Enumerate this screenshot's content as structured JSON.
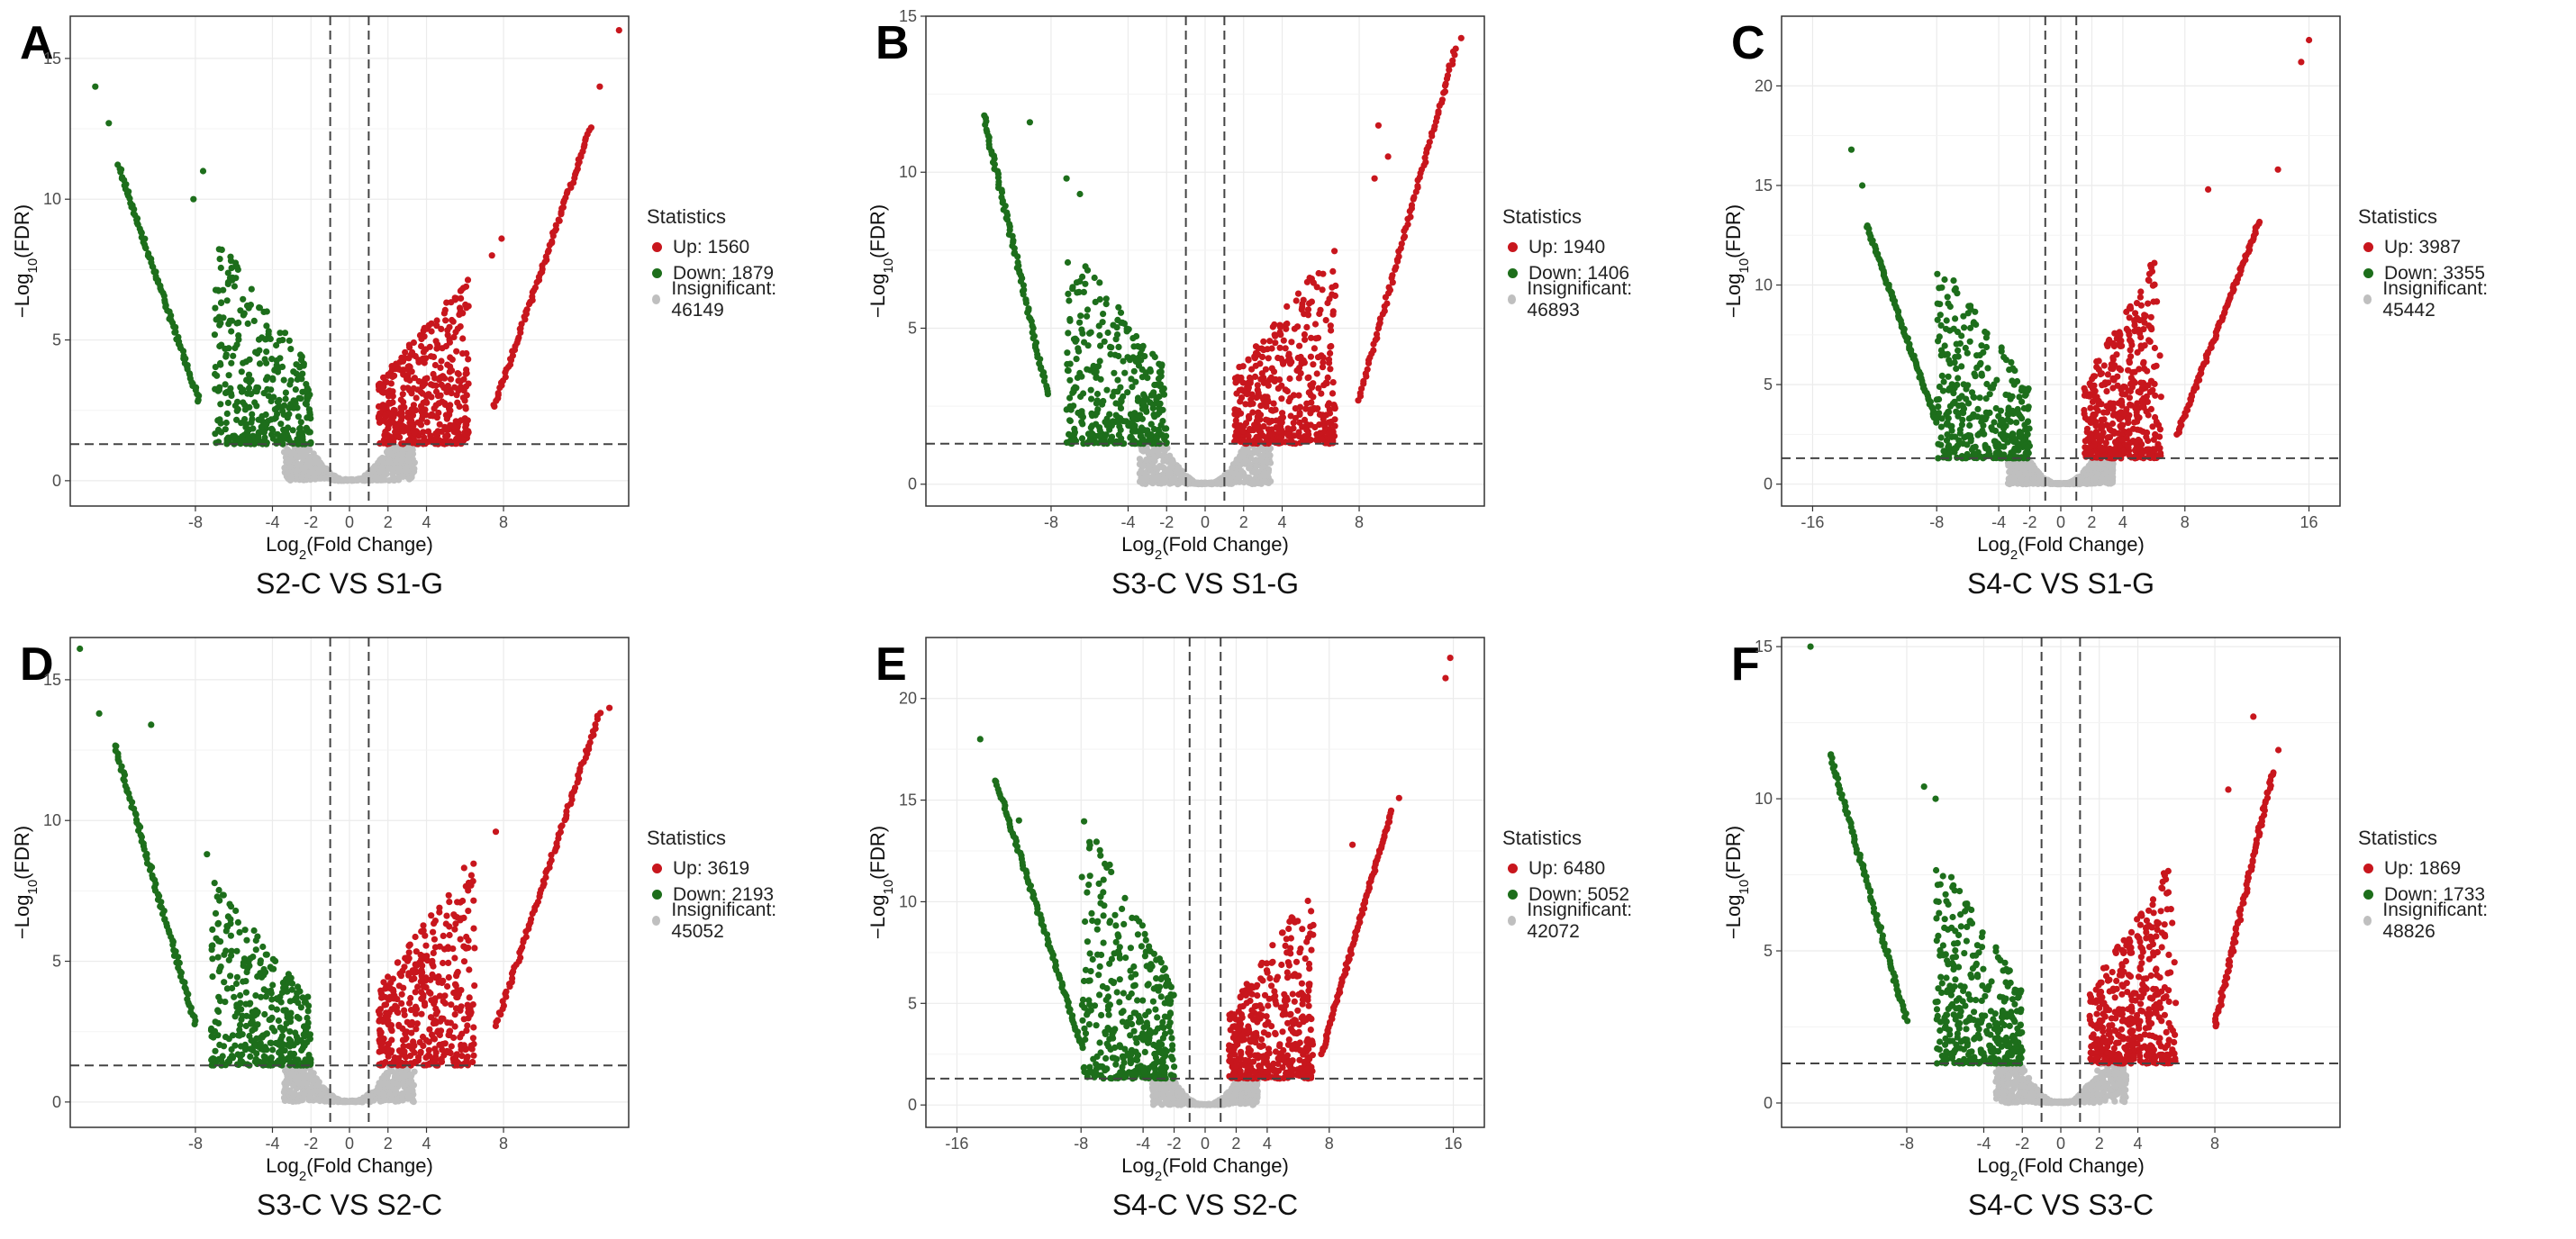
{
  "colors": {
    "up": "#c8161d",
    "down": "#1d6e1b",
    "insignificant": "#bfbfbf",
    "grid": "#ebebeb",
    "border": "#333333"
  },
  "legend_title": "Statistics",
  "legend_labels": {
    "up": "Up",
    "down": "Down",
    "insignificant": "Insignificant"
  },
  "axis_labels": {
    "x_prefix": "Log",
    "x_sub": "2",
    "x_suffix": "(Fold Change)",
    "y_prefix": "−Log",
    "y_sub": "10",
    "y_suffix": "(FDR)"
  },
  "chart_data": [
    {
      "type": "scatter",
      "id": "A",
      "title": "S2-C VS S1-G",
      "stats": {
        "up": "Up: 1560",
        "down": "Down: 1879",
        "insignificant": "Insignificant: 46149"
      },
      "xlim": [
        -14.5,
        14.5
      ],
      "ylim": [
        -0.9,
        16.5
      ],
      "xticks": [
        -8,
        -4,
        -2,
        0,
        2,
        4,
        8
      ],
      "yticks": [
        0,
        5,
        10,
        15
      ],
      "thresholds": {
        "fc_left": -1,
        "fc_right": 1,
        "fdr": 1.3
      },
      "extremes": {
        "down": [
          [
            -13.2,
            14.0
          ],
          [
            -12.5,
            12.7
          ],
          [
            -7.6,
            11.0
          ],
          [
            -8.1,
            10.0
          ]
        ],
        "up": [
          [
            14.0,
            16.0
          ],
          [
            13.0,
            14.0
          ],
          [
            7.9,
            8.6
          ],
          [
            7.4,
            8.0
          ]
        ]
      },
      "bands": {
        "down_main": [
          [
            -12.0,
            11.2
          ],
          [
            -7.8,
            2.8
          ]
        ],
        "up_main": [
          [
            7.5,
            2.6
          ],
          [
            12.5,
            12.5
          ]
        ]
      },
      "cloud": {
        "down_x": [
          -7.0,
          -2.0
        ],
        "down_ymax": 9.0,
        "up_x": [
          1.5,
          6.2
        ],
        "up_ymax": 7.5
      }
    },
    {
      "type": "scatter",
      "id": "B",
      "title": "S3-C VS S1-G",
      "stats": {
        "up": "Up: 1940",
        "down": "Down: 1406",
        "insignificant": "Insignificant: 46893"
      },
      "xlim": [
        -14.5,
        14.5
      ],
      "ylim": [
        -0.7,
        15.0
      ],
      "xticks": [
        -8,
        -4,
        -2,
        0,
        2,
        4,
        8
      ],
      "yticks": [
        0,
        5,
        10,
        15
      ],
      "thresholds": {
        "fc_left": -1,
        "fc_right": 1,
        "fdr": 1.3
      },
      "extremes": {
        "down": [
          [
            -9.1,
            11.6
          ],
          [
            -7.2,
            9.8
          ],
          [
            -6.5,
            9.3
          ]
        ],
        "up": [
          [
            13.3,
            14.3
          ],
          [
            9.5,
            10.5
          ],
          [
            9.0,
            11.5
          ],
          [
            8.8,
            9.8
          ]
        ]
      },
      "bands": {
        "down_main": [
          [
            -11.5,
            11.8
          ],
          [
            -8.2,
            2.9
          ]
        ],
        "up_main": [
          [
            8.0,
            2.7
          ],
          [
            13.0,
            14.0
          ]
        ]
      },
      "cloud": {
        "down_x": [
          -7.2,
          -2.0
        ],
        "down_ymax": 8.0,
        "up_x": [
          1.5,
          6.8
        ],
        "up_ymax": 7.8
      }
    },
    {
      "type": "scatter",
      "id": "C",
      "title": "S4-C VS S1-G",
      "stats": {
        "up": "Up: 3987",
        "down": "Down: 3355",
        "insignificant": "Insignificant: 45442"
      },
      "xlim": [
        -18,
        18
      ],
      "ylim": [
        -1.1,
        23.5
      ],
      "xticks": [
        -16,
        -8,
        -4,
        -2,
        0,
        2,
        4,
        8,
        16
      ],
      "yticks": [
        0,
        5,
        10,
        15,
        20
      ],
      "thresholds": {
        "fc_left": -1,
        "fc_right": 1,
        "fdr": 1.3
      },
      "extremes": {
        "down": [
          [
            -13.5,
            16.8
          ],
          [
            -12.8,
            15.0
          ]
        ],
        "up": [
          [
            16.0,
            22.3
          ],
          [
            15.5,
            21.2
          ],
          [
            14.0,
            15.8
          ],
          [
            9.5,
            14.8
          ]
        ]
      },
      "bands": {
        "down_main": [
          [
            -12.5,
            13.0
          ],
          [
            -8.0,
            3.1
          ]
        ],
        "up_main": [
          [
            7.5,
            2.5
          ],
          [
            12.8,
            13.2
          ]
        ]
      },
      "cloud": {
        "down_x": [
          -8.0,
          -2.0
        ],
        "down_ymax": 11.5,
        "up_x": [
          1.5,
          6.5
        ],
        "up_ymax": 12.0
      }
    },
    {
      "type": "scatter",
      "id": "D",
      "title": "S3-C VS S2-C",
      "stats": {
        "up": "Up: 3619",
        "down": "Down: 2193",
        "insignificant": "Insignificant: 45052"
      },
      "xlim": [
        -14.5,
        14.5
      ],
      "ylim": [
        -0.9,
        16.5
      ],
      "xticks": [
        -8,
        -4,
        -2,
        0,
        2,
        4,
        8
      ],
      "yticks": [
        0,
        5,
        10,
        15
      ],
      "thresholds": {
        "fc_left": -1,
        "fc_right": 1,
        "fdr": 1.3
      },
      "extremes": {
        "down": [
          [
            -14.0,
            16.1
          ],
          [
            -13.0,
            13.8
          ],
          [
            -10.3,
            13.4
          ],
          [
            -7.4,
            8.8
          ]
        ],
        "up": [
          [
            13.5,
            14.0
          ],
          [
            7.6,
            9.6
          ]
        ]
      },
      "bands": {
        "down_main": [
          [
            -12.2,
            12.7
          ],
          [
            -8.0,
            2.8
          ]
        ],
        "up_main": [
          [
            7.6,
            2.7
          ],
          [
            13.0,
            13.8
          ]
        ]
      },
      "cloud": {
        "down_x": [
          -7.2,
          -2.0
        ],
        "down_ymax": 8.0,
        "up_x": [
          1.5,
          6.5
        ],
        "up_ymax": 9.0
      }
    },
    {
      "type": "scatter",
      "id": "E",
      "title": "S4-C VS S2-C",
      "stats": {
        "up": "Up: 6480",
        "down": "Down: 5052",
        "insignificant": "Insignificant: 42072"
      },
      "xlim": [
        -18,
        18
      ],
      "ylim": [
        -1.1,
        23.0
      ],
      "xticks": [
        -16,
        -8,
        -4,
        -2,
        0,
        2,
        4,
        8,
        16
      ],
      "yticks": [
        0,
        5,
        10,
        15,
        20
      ],
      "thresholds": {
        "fc_left": -1,
        "fc_right": 1,
        "fdr": 1.3
      },
      "extremes": {
        "down": [
          [
            -14.5,
            18.0
          ],
          [
            -12.0,
            14.0
          ]
        ],
        "up": [
          [
            15.8,
            22.0
          ],
          [
            15.5,
            21.0
          ],
          [
            12.5,
            15.1
          ],
          [
            9.5,
            12.8
          ]
        ]
      },
      "bands": {
        "down_main": [
          [
            -13.5,
            16.0
          ],
          [
            -8.0,
            3.0
          ]
        ],
        "up_main": [
          [
            7.5,
            2.5
          ],
          [
            12.0,
            14.5
          ]
        ]
      },
      "cloud": {
        "down_x": [
          -8.0,
          -2.0
        ],
        "down_ymax": 14.5,
        "up_x": [
          1.5,
          7.0
        ],
        "up_ymax": 11.0
      }
    },
    {
      "type": "scatter",
      "id": "F",
      "title": "S4-C VS S3-C",
      "stats": {
        "up": "Up: 1869",
        "down": "Down: 1733",
        "insignificant": "Insignificant: 48826"
      },
      "xlim": [
        -14.5,
        14.5
      ],
      "ylim": [
        -0.8,
        15.3
      ],
      "xticks": [
        -8,
        -4,
        -2,
        0,
        2,
        4,
        8
      ],
      "yticks": [
        0,
        5,
        10,
        15
      ],
      "thresholds": {
        "fc_left": -1,
        "fc_right": 1,
        "fdr": 1.3
      },
      "extremes": {
        "down": [
          [
            -13.0,
            15.0
          ],
          [
            -7.1,
            10.4
          ],
          [
            -6.5,
            10.0
          ]
        ],
        "up": [
          [
            10.0,
            12.7
          ],
          [
            8.7,
            10.3
          ],
          [
            11.3,
            11.6
          ]
        ]
      },
      "bands": {
        "down_main": [
          [
            -12.0,
            11.5
          ],
          [
            -8.0,
            2.7
          ]
        ],
        "up_main": [
          [
            8.0,
            2.5
          ],
          [
            11.0,
            10.9
          ]
        ]
      },
      "cloud": {
        "down_x": [
          -6.5,
          -2.0
        ],
        "down_ymax": 8.3,
        "up_x": [
          1.5,
          6.0
        ],
        "up_ymax": 8.2
      }
    }
  ]
}
